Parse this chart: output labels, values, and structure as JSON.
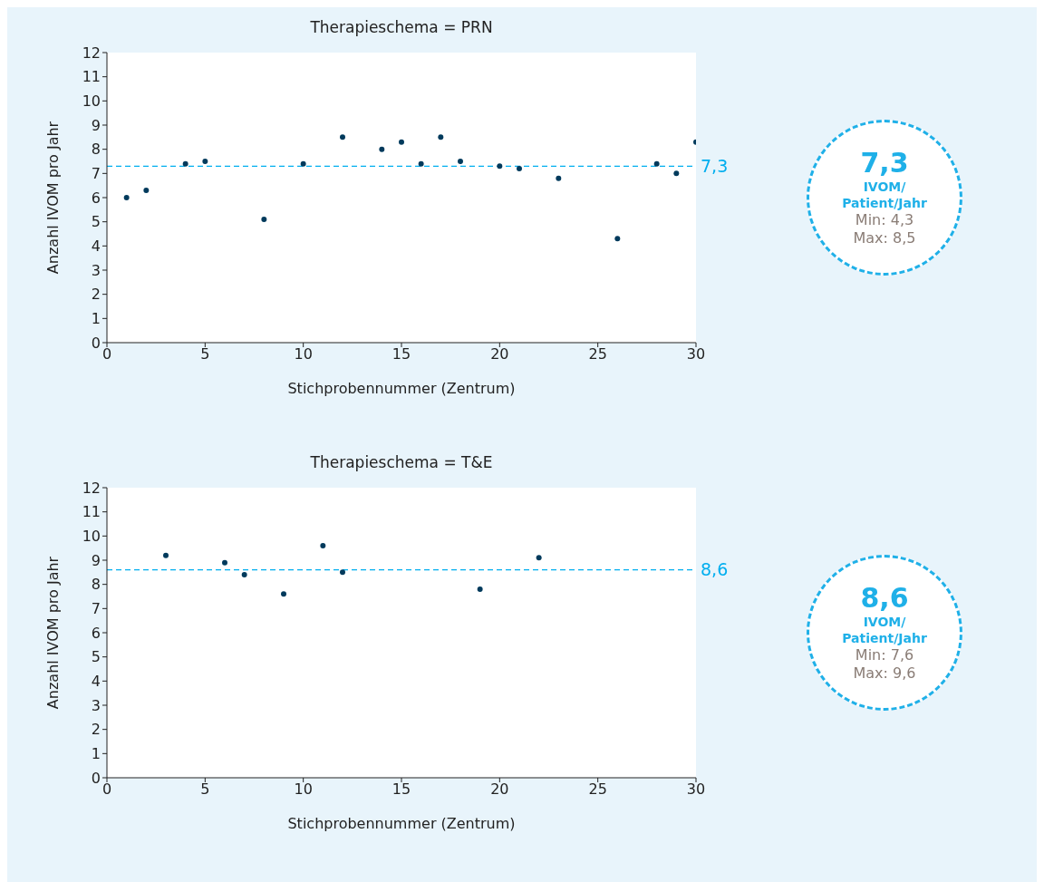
{
  "chart_data": [
    {
      "type": "scatter",
      "title": "Therapieschema = PRN",
      "xlabel": "Stichprobennummer (Zentrum)",
      "ylabel": "Anzahl IVOM pro Jahr",
      "x": [
        1,
        2,
        4,
        5,
        8,
        10,
        12,
        14,
        15,
        16,
        17,
        18,
        20,
        21,
        23,
        26,
        28,
        29,
        30
      ],
      "series": [
        {
          "color": "#003a5c",
          "values": [
            6.0,
            6.3,
            7.4,
            7.5,
            5.1,
            7.4,
            8.5,
            8.0,
            8.3,
            7.4,
            8.5,
            7.5,
            7.3,
            7.2,
            6.8,
            4.3,
            7.4,
            7.0,
            8.3
          ]
        }
      ],
      "xlim": [
        0,
        30
      ],
      "xticks": [
        0,
        5,
        10,
        15,
        20,
        25,
        30
      ],
      "ylim": [
        0,
        12
      ],
      "yticks": [
        0,
        1,
        2,
        3,
        4,
        5,
        6,
        7,
        8,
        9,
        10,
        11,
        12
      ],
      "ref_lines": [
        {
          "axis": "y",
          "value": 7.3,
          "label": "7,3",
          "color": "#00aeef",
          "line_style": "dashed"
        }
      ],
      "annotations": [
        "7,3",
        "IVOM/ Patient/Jahr",
        "Min: 4,3",
        "Max: 8,5"
      ],
      "grid": false,
      "legend": false,
      "marker": "circle"
    },
    {
      "type": "scatter",
      "title": "Therapieschema = T&E",
      "xlabel": "Stichprobennummer (Zentrum)",
      "ylabel": "Anzahl IVOM pro Jahr",
      "x": [
        3,
        6,
        7,
        9,
        11,
        12,
        19,
        22
      ],
      "series": [
        {
          "color": "#003a5c",
          "values": [
            9.2,
            8.9,
            8.4,
            7.6,
            9.6,
            8.5,
            7.8,
            9.1
          ]
        }
      ],
      "xlim": [
        0,
        30
      ],
      "xticks": [
        0,
        5,
        10,
        15,
        20,
        25,
        30
      ],
      "ylim": [
        0,
        12
      ],
      "yticks": [
        0,
        1,
        2,
        3,
        4,
        5,
        6,
        7,
        8,
        9,
        10,
        11,
        12
      ],
      "ref_lines": [
        {
          "axis": "y",
          "value": 8.6,
          "label": "8,6",
          "color": "#00aeef",
          "line_style": "dashed"
        }
      ],
      "annotations": [
        "8,6",
        "IVOM/ Patient/Jahr",
        "Min: 7,6",
        "Max: 9,6"
      ],
      "grid": false,
      "legend": false,
      "marker": "circle"
    }
  ]
}
